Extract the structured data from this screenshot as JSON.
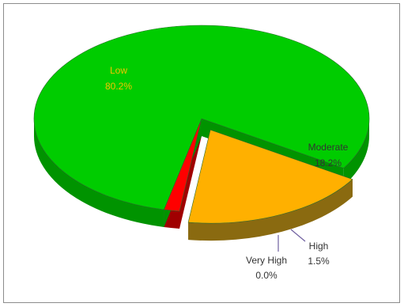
{
  "chart_data": {
    "type": "pie",
    "style": "3d-exploded",
    "slices": [
      {
        "name": "Low",
        "value": 80.2,
        "label": "80.2%",
        "color": "#00cc00",
        "side_color": "#009300"
      },
      {
        "name": "Moderate",
        "value": 18.2,
        "label": "18.2%",
        "color": "#ffb000",
        "side_color": "#8a6a10",
        "exploded": true
      },
      {
        "name": "High",
        "value": 1.5,
        "label": "1.5%",
        "color": "#ff0000",
        "side_color": "#a00000"
      },
      {
        "name": "Very High",
        "value": 0.0,
        "label": "0.0%",
        "color": "#5a3fa8",
        "side_color": "#3a2a70"
      }
    ],
    "legend": "none",
    "label_color": "#f2c400",
    "callout_color": "#7060a0"
  }
}
